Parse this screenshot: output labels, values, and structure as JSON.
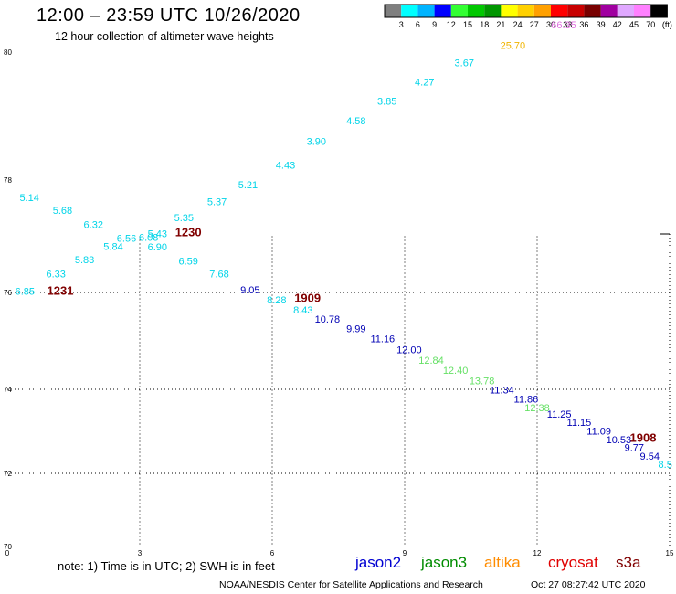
{
  "header": {
    "title": "12:00 – 23:59 UTC 10/26/2020",
    "subtitle": "12 hour collection of altimeter wave heights"
  },
  "colorbar": {
    "colors": [
      "#7f7f7f",
      "#00ffff",
      "#00b4ff",
      "#0000ff",
      "#33ff33",
      "#00c800",
      "#009600",
      "#ffff00",
      "#ffd000",
      "#ffa000",
      "#ff0000",
      "#c80000",
      "#780000",
      "#a000a0",
      "#e0a8ff",
      "#ff80ff",
      "#000000"
    ],
    "ticks": [
      "3",
      "6",
      "9",
      "12",
      "15",
      "18",
      "21",
      "24",
      "27",
      "30",
      "33",
      "36",
      "39",
      "42",
      "45",
      "70",
      "(ft)"
    ]
  },
  "axes": {
    "x_ticks": [
      "0",
      "3",
      "6",
      "9",
      "12",
      "15"
    ],
    "y_ticks": [
      "80",
      "78",
      "76",
      "74",
      "72",
      "70"
    ]
  },
  "colors": {
    "cyan": "#00d4e8",
    "blue": "#0000b4",
    "lime": "#66e066",
    "gold": "#f0b400",
    "pink": "#e070e0",
    "maroon": "#800000"
  },
  "labels": [
    {
      "t": "5.14",
      "x": 0.5,
      "y": 77.63,
      "c": "cyan"
    },
    {
      "t": "5.68",
      "x": 1.25,
      "y": 77.4,
      "c": "cyan"
    },
    {
      "t": "6.32",
      "x": 1.95,
      "y": 77.15,
      "c": "cyan"
    },
    {
      "t": "6.56",
      "x": 2.7,
      "y": 76.9,
      "c": "cyan"
    },
    {
      "t": "6.08",
      "x": 3.2,
      "y": 76.92,
      "c": "cyan"
    },
    {
      "t": "5.43",
      "x": 3.4,
      "y": 76.98,
      "c": "cyan"
    },
    {
      "t": "5.35",
      "x": 4.0,
      "y": 77.27,
      "c": "cyan"
    },
    {
      "t": "5.37",
      "x": 4.75,
      "y": 77.55,
      "c": "cyan"
    },
    {
      "t": "5.21",
      "x": 5.45,
      "y": 77.85,
      "c": "cyan"
    },
    {
      "t": "4.43",
      "x": 6.3,
      "y": 78.18,
      "c": "cyan"
    },
    {
      "t": "3.90",
      "x": 7.0,
      "y": 78.55,
      "c": "cyan"
    },
    {
      "t": "4.58",
      "x": 7.9,
      "y": 78.87,
      "c": "cyan"
    },
    {
      "t": "3.85",
      "x": 8.6,
      "y": 79.18,
      "c": "cyan"
    },
    {
      "t": "4.27",
      "x": 9.45,
      "y": 79.48,
      "c": "cyan"
    },
    {
      "t": "3.67",
      "x": 10.35,
      "y": 79.78,
      "c": "cyan"
    },
    {
      "t": "25.70",
      "x": 11.45,
      "y": 80.05,
      "c": "gold"
    },
    {
      "t": "66.35",
      "x": 12.6,
      "y": 80.37,
      "c": "pink"
    },
    {
      "t": "6.85",
      "x": 0.4,
      "y": 75.95,
      "c": "cyan"
    },
    {
      "t": "6.33",
      "x": 1.1,
      "y": 76.27,
      "c": "cyan"
    },
    {
      "t": "5.83",
      "x": 1.75,
      "y": 76.52,
      "c": "cyan"
    },
    {
      "t": "5.84",
      "x": 2.4,
      "y": 76.76,
      "c": "cyan"
    },
    {
      "t": "6.90",
      "x": 3.4,
      "y": 76.75,
      "c": "cyan"
    },
    {
      "t": "6.59",
      "x": 4.1,
      "y": 76.5,
      "c": "cyan"
    },
    {
      "t": "7.68",
      "x": 4.8,
      "y": 76.27,
      "c": "cyan"
    },
    {
      "t": "9.05",
      "x": 5.5,
      "y": 75.98,
      "c": "blue"
    },
    {
      "t": "8.28",
      "x": 6.1,
      "y": 75.77,
      "c": "cyan"
    },
    {
      "t": "8.43",
      "x": 6.7,
      "y": 75.57,
      "c": "cyan"
    },
    {
      "t": "10.78",
      "x": 7.25,
      "y": 75.38,
      "c": "blue"
    },
    {
      "t": "9.99",
      "x": 7.9,
      "y": 75.18,
      "c": "blue"
    },
    {
      "t": "11.16",
      "x": 8.5,
      "y": 74.97,
      "c": "blue"
    },
    {
      "t": "12.00",
      "x": 9.1,
      "y": 74.75,
      "c": "blue"
    },
    {
      "t": "12.84",
      "x": 9.6,
      "y": 74.53,
      "c": "lime"
    },
    {
      "t": "12.40",
      "x": 10.15,
      "y": 74.32,
      "c": "lime"
    },
    {
      "t": "13.78",
      "x": 10.75,
      "y": 74.1,
      "c": "lime"
    },
    {
      "t": "11.34",
      "x": 11.2,
      "y": 73.9,
      "c": "blue"
    },
    {
      "t": "11.86",
      "x": 11.75,
      "y": 73.68,
      "c": "blue"
    },
    {
      "t": "12.38",
      "x": 12.0,
      "y": 73.48,
      "c": "lime"
    },
    {
      "t": "11.25",
      "x": 12.5,
      "y": 73.33,
      "c": "blue"
    },
    {
      "t": "11.15",
      "x": 12.95,
      "y": 73.13,
      "c": "blue"
    },
    {
      "t": "11.09",
      "x": 13.4,
      "y": 72.92,
      "c": "blue"
    },
    {
      "t": "10.53",
      "x": 13.85,
      "y": 72.72,
      "c": "blue"
    },
    {
      "t": "9.77",
      "x": 14.2,
      "y": 72.53,
      "c": "blue"
    },
    {
      "t": "9.54",
      "x": 14.55,
      "y": 72.33,
      "c": "blue"
    },
    {
      "t": "8.5",
      "x": 14.9,
      "y": 72.13,
      "c": "cyan"
    }
  ],
  "markers": [
    {
      "t": "1231",
      "x": 1.2,
      "y": 75.95
    },
    {
      "t": "1230",
      "x": 4.1,
      "y": 77.0
    },
    {
      "t": "1909",
      "x": 6.8,
      "y": 75.8
    },
    {
      "t": "1908",
      "x": 14.4,
      "y": 72.75
    }
  ],
  "footer": {
    "note": "note:  1) Time is in UTC;  2) SWH is in feet",
    "satellites": [
      {
        "name": "jason2",
        "color": "#0000d2"
      },
      {
        "name": "jason3",
        "color": "#008c00"
      },
      {
        "name": "altika",
        "color": "#ff8c00"
      },
      {
        "name": "cryosat",
        "color": "#e00000"
      },
      {
        "name": "s3a",
        "color": "#800000"
      }
    ],
    "credit": "NOAA/NESDIS Center for Satellite Applications and Research",
    "timestamp": "Oct 27 08:27:42 UTC 2020"
  }
}
